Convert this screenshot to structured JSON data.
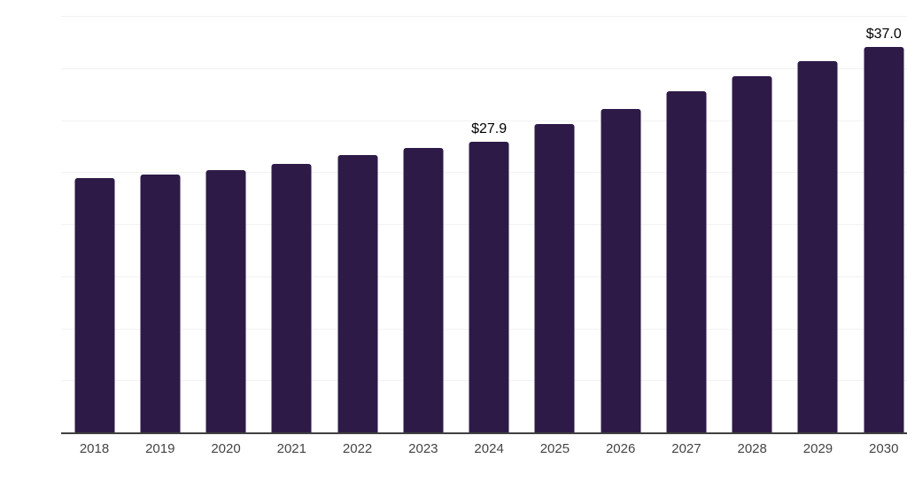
{
  "chart_data": {
    "type": "bar",
    "title": "",
    "xlabel": "",
    "ylabel": "",
    "categories": [
      "2018",
      "2019",
      "2020",
      "2021",
      "2022",
      "2023",
      "2024",
      "2025",
      "2026",
      "2027",
      "2028",
      "2029",
      "2030"
    ],
    "values": [
      24.4,
      24.8,
      25.2,
      25.8,
      26.6,
      27.3,
      27.9,
      29.6,
      31.1,
      32.8,
      34.2,
      35.7,
      37.0
    ],
    "data_labels": [
      {
        "category": "2024",
        "text": "$27.9"
      },
      {
        "category": "2030",
        "text": "$37.0"
      }
    ],
    "ylim": [
      0,
      40
    ],
    "grid_step": 5,
    "grid": "horizontal-only",
    "y_axis_tick_labels": "none",
    "legend": "none",
    "colors": {
      "bar": "#2e1a47",
      "gridline": "#f2f2f2",
      "axis_line": "#404040",
      "tick_label": "#444444",
      "data_label": "#000000",
      "background": "#ffffff"
    }
  }
}
